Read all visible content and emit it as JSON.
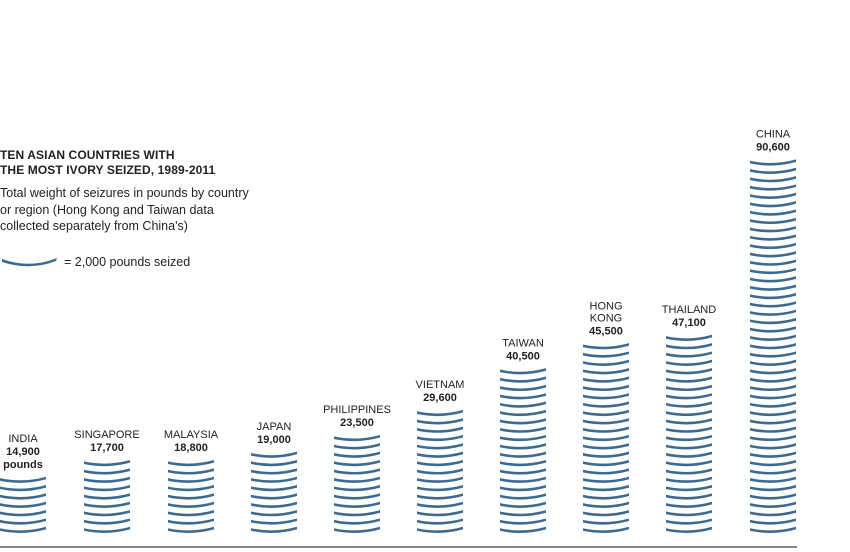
{
  "chart_data": {
    "type": "bar",
    "title": "TEN ASIAN COUNTRIES WITH THE MOST IVORY SEIZED, 1989-2011",
    "title_lines": [
      "TEN ASIAN COUNTRIES WITH",
      "THE MOST IVORY SEIZED, 1989-2011"
    ],
    "subtitle_lines": [
      "Total weight of seizures in pounds by country",
      "or region (Hong Kong and Taiwan data",
      "collected separately from China's)"
    ],
    "legend": {
      "label": "= 2,000 pounds seized",
      "unit_value": 2000
    },
    "unit": "pounds",
    "categories": [
      "INDIA",
      "SINGAPORE",
      "MALAYSIA",
      "JAPAN",
      "PHILIPPINES",
      "VIETNAM",
      "TAIWAN",
      "HONG KONG",
      "THAILAND",
      "CHINA"
    ],
    "category_lines": [
      [
        "INDIA"
      ],
      [
        "SINGAPORE"
      ],
      [
        "MALAYSIA"
      ],
      [
        "JAPAN"
      ],
      [
        "PHILIPPINES"
      ],
      [
        "VIETNAM"
      ],
      [
        "TAIWAN"
      ],
      [
        "HONG",
        "KONG"
      ],
      [
        "THAILAND"
      ],
      [
        "CHINA"
      ]
    ],
    "values": [
      14900,
      17700,
      18800,
      19000,
      23500,
      29600,
      40500,
      45500,
      47100,
      90600
    ],
    "value_labels": [
      "14,900",
      "17,700",
      "18,800",
      "19,000",
      "23,500",
      "29,600",
      "40,500",
      "45,500",
      "47,100",
      "90,600"
    ],
    "extra_labels": [
      "pounds",
      "",
      "",
      "",
      "",
      "",
      "",
      "",
      "",
      ""
    ],
    "colors": {
      "tusk": "#3d6a91",
      "baseline": "#888888",
      "text": "#222222"
    }
  }
}
